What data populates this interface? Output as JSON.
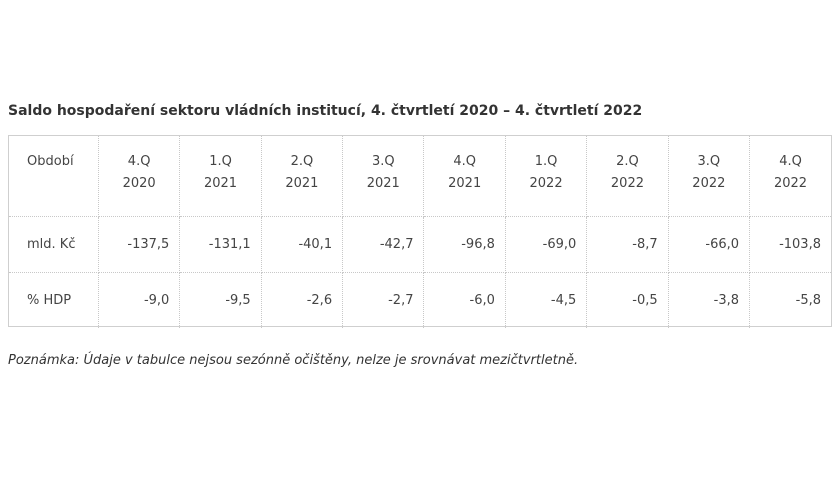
{
  "title": "Saldo hospodaření sektoru vládních institucí, 4. čtvrtletí 2020 – 4. čtvrtletí 2022",
  "table": {
    "header_label": "Období",
    "periods": [
      {
        "q": "4.Q",
        "y": "2020"
      },
      {
        "q": "1.Q",
        "y": "2021"
      },
      {
        "q": "2.Q",
        "y": "2021"
      },
      {
        "q": "3.Q",
        "y": "2021"
      },
      {
        "q": "4.Q",
        "y": "2021"
      },
      {
        "q": "1.Q",
        "y": "2022"
      },
      {
        "q": "2.Q",
        "y": "2022"
      },
      {
        "q": "3.Q",
        "y": "2022"
      },
      {
        "q": "4.Q",
        "y": "2022"
      }
    ],
    "rows": [
      {
        "label": "mld. Kč",
        "values": [
          "-137,5",
          "-131,1",
          "-40,1",
          "-42,7",
          "-96,8",
          "-69,0",
          "-8,7",
          "-66,0",
          "-103,8"
        ]
      },
      {
        "label": "% HDP",
        "values": [
          "-9,0",
          "-9,5",
          "-2,6",
          "-2,7",
          "-6,0",
          "-4,5",
          "-0,5",
          "-3,8",
          "-5,8"
        ]
      }
    ]
  },
  "note": "Poznámka: Údaje v tabulce nejsou sezónně očištěny, nelze je srovnávat mezičtvrtletně."
}
